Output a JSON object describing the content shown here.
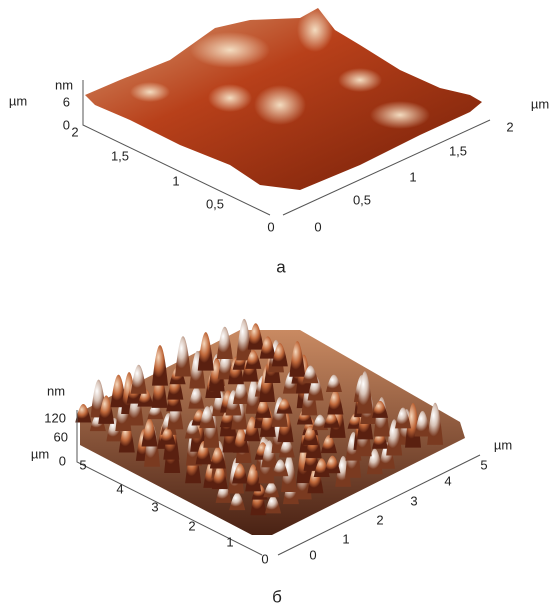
{
  "panels": [
    {
      "label": "а",
      "z_unit": "nm",
      "z_ticks": [
        "6",
        "0"
      ],
      "left_unit": "µm",
      "left_ticks": [
        "2",
        "1,5",
        "1",
        "0,5",
        "0"
      ],
      "right_unit": "µm",
      "right_ticks": [
        "0",
        "0,5",
        "1",
        "1,5",
        "2"
      ]
    },
    {
      "label": "б",
      "z_unit": "nm",
      "z_ticks": [
        "120",
        "60",
        "0"
      ],
      "left_unit": "µm",
      "left_ticks": [
        "5",
        "4",
        "3",
        "2",
        "1",
        "0"
      ],
      "right_unit": "µm",
      "right_ticks": [
        "0",
        "1",
        "2",
        "3",
        "4",
        "5"
      ]
    }
  ]
}
